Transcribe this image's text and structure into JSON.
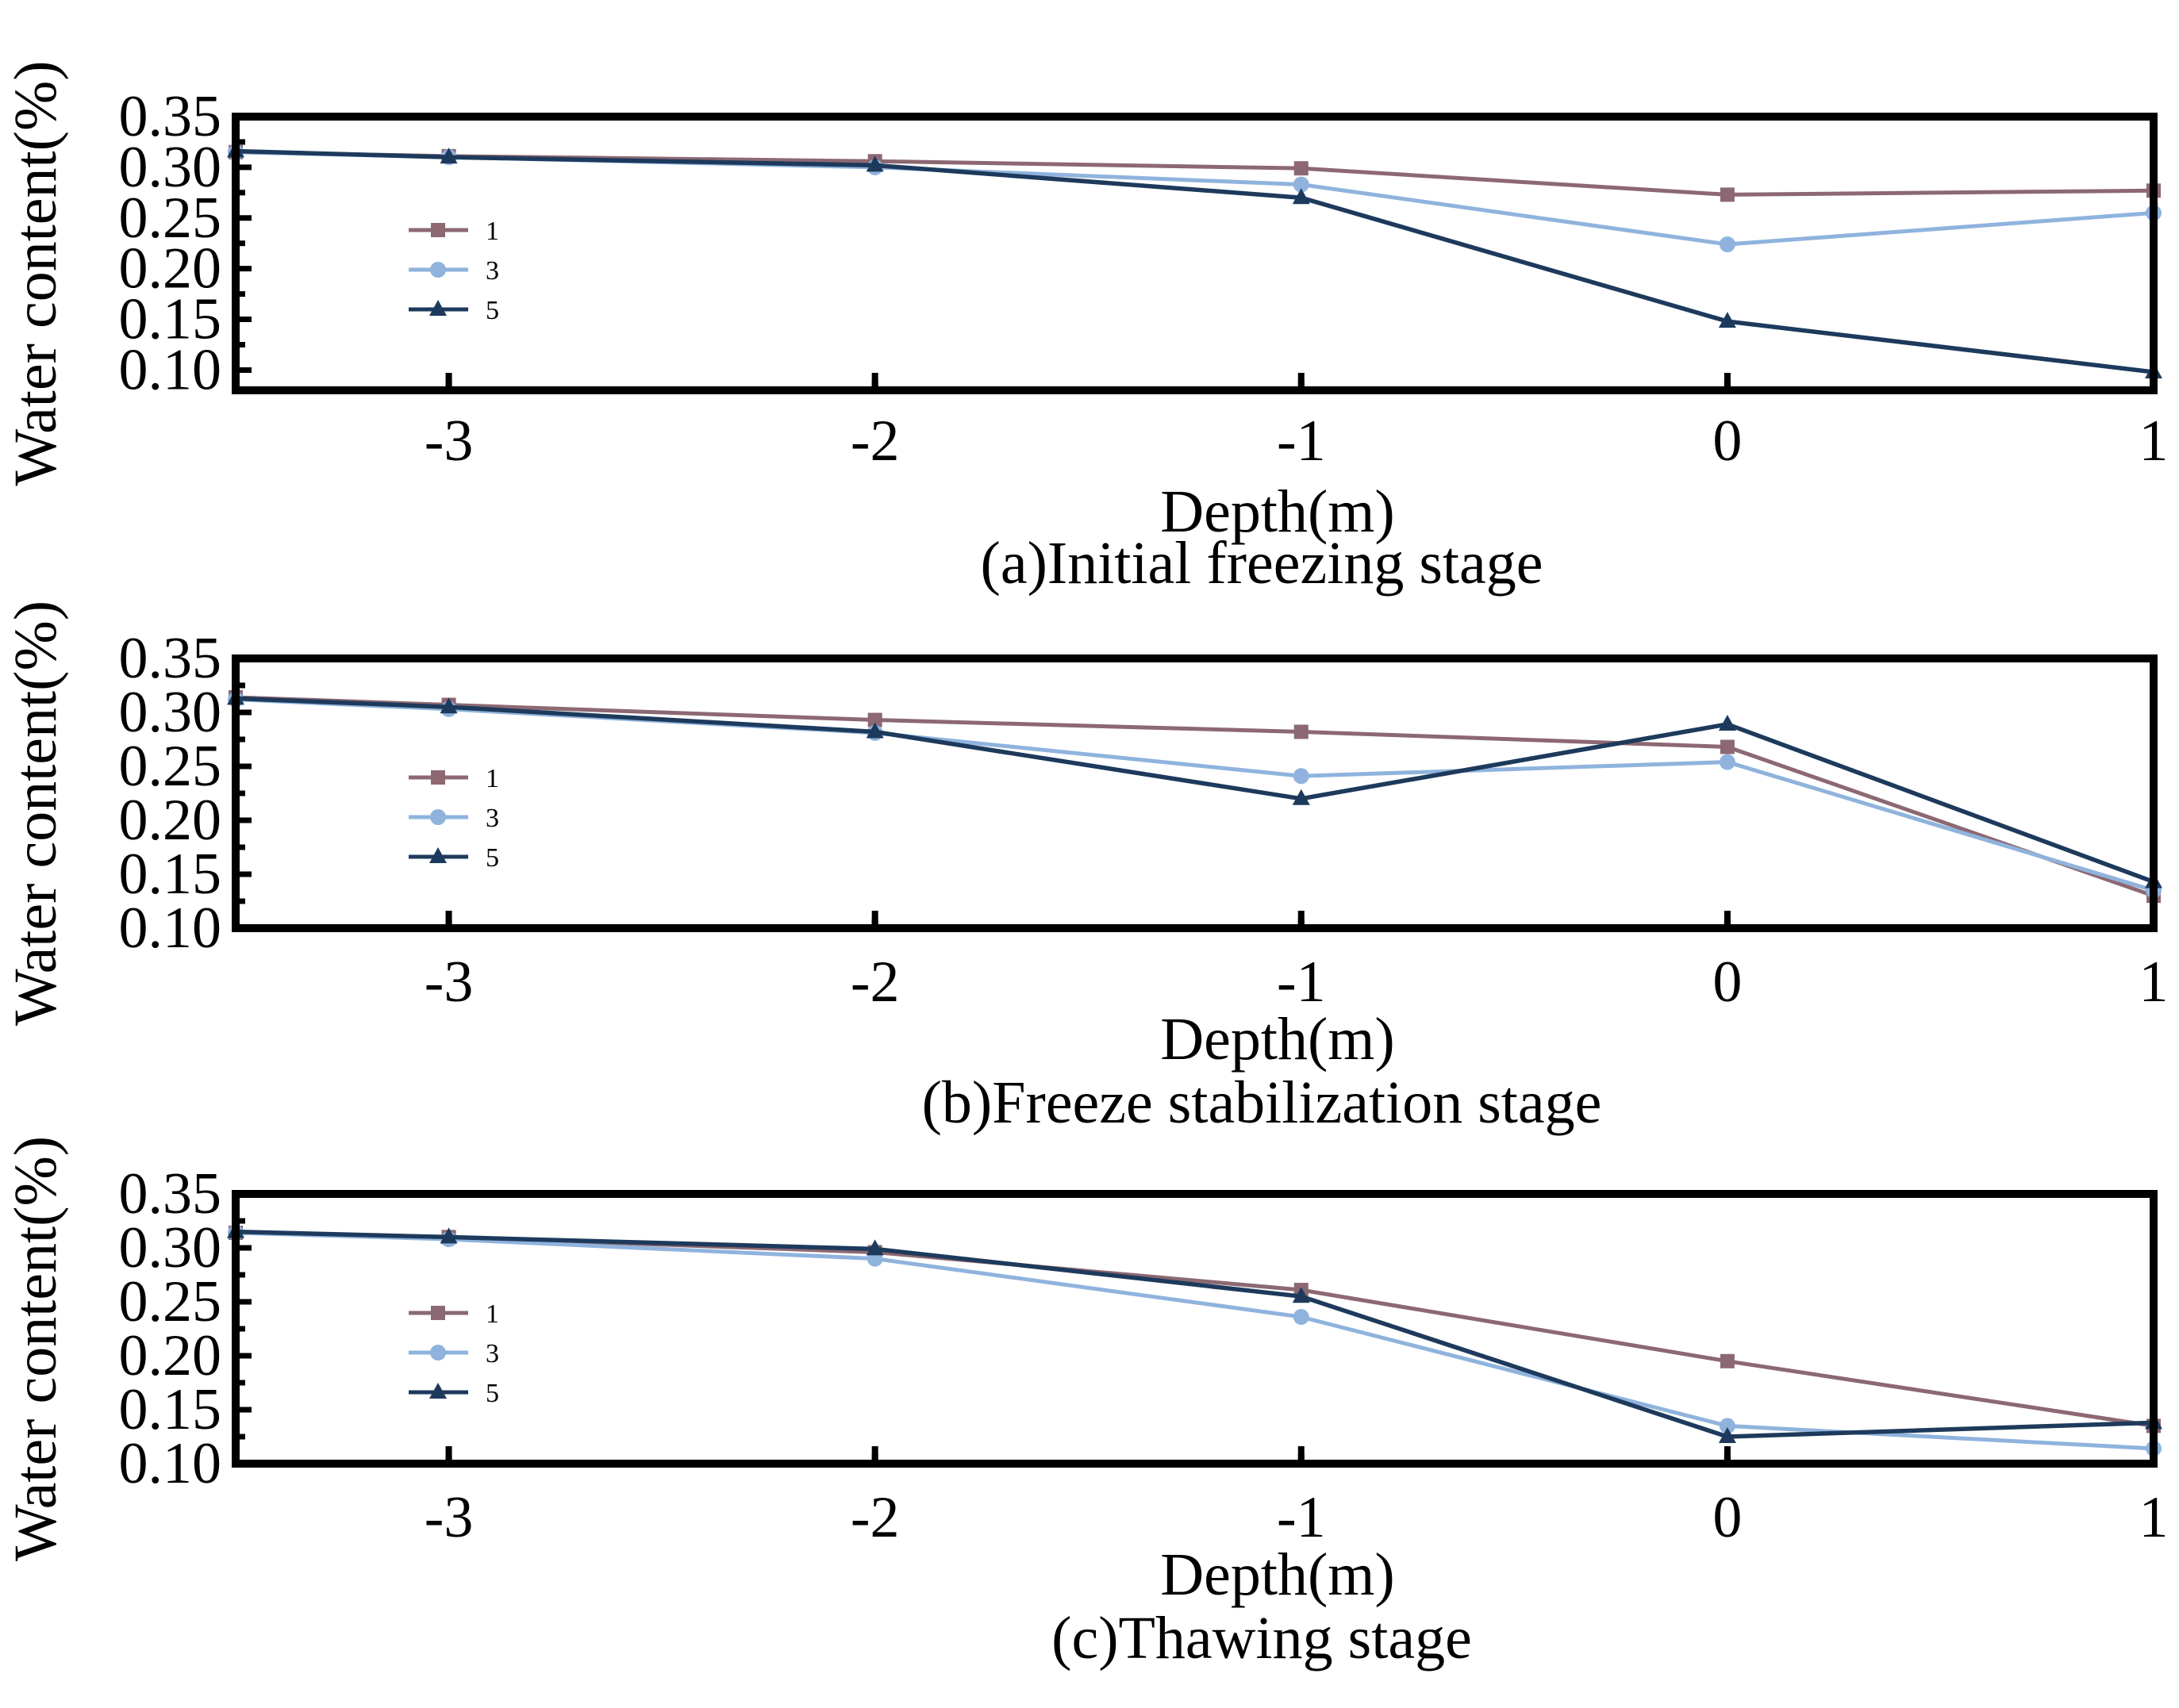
{
  "colors": {
    "series1": "#8c6872",
    "series3": "#8fb3dd",
    "series5": "#1d3a5c",
    "axis": "#000000",
    "background": "#ffffff"
  },
  "chart_data": [
    {
      "type": "line",
      "caption": "(a)Initial freezing stage",
      "xlabel": "Depth(m)",
      "ylabel": "Water content(%)",
      "xlim": [
        -3.5,
        1
      ],
      "ylim": [
        0.08,
        0.35
      ],
      "xticks": [
        -3,
        -2,
        -1,
        0,
        1
      ],
      "xtick_labels": [
        "-3",
        "-2",
        "-1",
        "0",
        "1"
      ],
      "yticks": [
        0.1,
        0.15,
        0.2,
        0.25,
        0.3,
        0.35
      ],
      "ytick_labels": [
        "0.10",
        "0.15",
        "0.20",
        "0.25",
        "0.30",
        "0.35"
      ],
      "x": [
        -3.5,
        -3,
        -2,
        -1,
        0,
        1
      ],
      "legend_position": "left",
      "series": [
        {
          "name": "1",
          "marker": "square",
          "values": [
            0.315,
            0.311,
            0.306,
            0.299,
            0.273,
            0.277
          ]
        },
        {
          "name": "3",
          "marker": "circle",
          "values": [
            0.315,
            0.31,
            0.3,
            0.283,
            0.224,
            0.255
          ]
        },
        {
          "name": "5",
          "marker": "triangle",
          "values": [
            0.316,
            0.31,
            0.302,
            0.27,
            0.148,
            0.098
          ]
        }
      ]
    },
    {
      "type": "line",
      "caption": "(b)Freeze stabilization stage",
      "xlabel": "Depth(m)",
      "ylabel": "Water content(%)",
      "xlim": [
        -3.5,
        1
      ],
      "ylim": [
        0.1,
        0.35
      ],
      "xticks": [
        -3,
        -2,
        -1,
        0,
        1
      ],
      "xtick_labels": [
        "-3",
        "-2",
        "-1",
        "0",
        "1"
      ],
      "yticks": [
        0.1,
        0.15,
        0.2,
        0.25,
        0.3,
        0.35
      ],
      "ytick_labels": [
        "0.10",
        "0.15",
        "0.20",
        "0.25",
        "0.30",
        "0.35"
      ],
      "x": [
        -3.5,
        -3,
        -2,
        -1,
        0,
        1
      ],
      "legend_position": "left",
      "series": [
        {
          "name": "1",
          "marker": "square",
          "values": [
            0.314,
            0.307,
            0.293,
            0.282,
            0.268,
            0.13
          ]
        },
        {
          "name": "3",
          "marker": "circle",
          "values": [
            0.312,
            0.303,
            0.281,
            0.241,
            0.254,
            0.135
          ]
        },
        {
          "name": "5",
          "marker": "triangle",
          "values": [
            0.313,
            0.305,
            0.282,
            0.22,
            0.289,
            0.143
          ]
        }
      ]
    },
    {
      "type": "line",
      "caption": "(c)Thawing stage",
      "xlabel": "Depth(m)",
      "ylabel": "Water content(%)",
      "xlim": [
        -3.5,
        1
      ],
      "ylim": [
        0.1,
        0.35
      ],
      "xticks": [
        -3,
        -2,
        -1,
        0,
        1
      ],
      "xtick_labels": [
        "-3",
        "-2",
        "-1",
        "0",
        "1"
      ],
      "yticks": [
        0.1,
        0.15,
        0.2,
        0.25,
        0.3,
        0.35
      ],
      "ytick_labels": [
        "0.10",
        "0.15",
        "0.20",
        "0.25",
        "0.30",
        "0.35"
      ],
      "x": [
        -3.5,
        -3,
        -2,
        -1,
        0,
        1
      ],
      "legend_position": "left",
      "series": [
        {
          "name": "1",
          "marker": "square",
          "values": [
            0.314,
            0.31,
            0.296,
            0.261,
            0.195,
            0.135
          ]
        },
        {
          "name": "3",
          "marker": "circle",
          "values": [
            0.314,
            0.308,
            0.29,
            0.236,
            0.135,
            0.114
          ]
        },
        {
          "name": "5",
          "marker": "triangle",
          "values": [
            0.315,
            0.31,
            0.299,
            0.255,
            0.125,
            0.138
          ]
        }
      ]
    }
  ]
}
